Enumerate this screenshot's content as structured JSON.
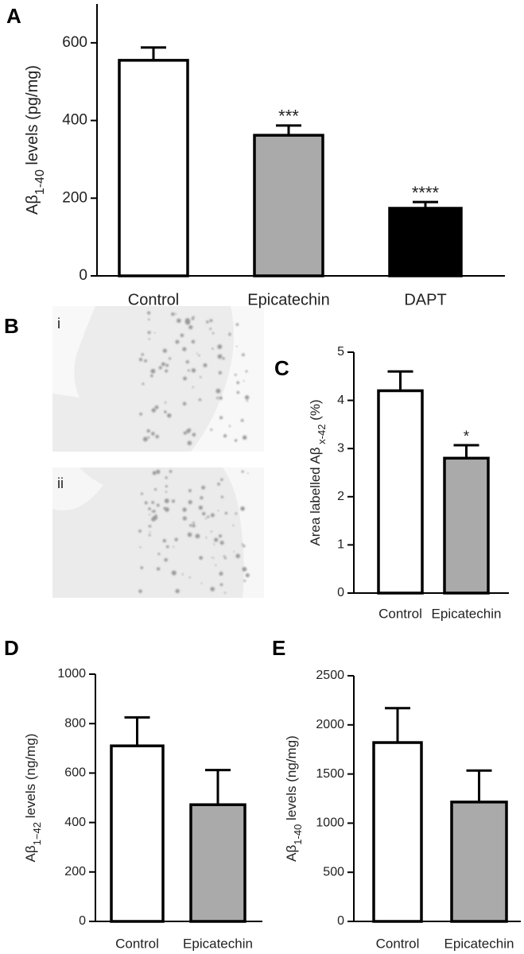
{
  "chart_data": [
    {
      "type": "bar",
      "panel": "A",
      "ylabel": {
        "main": "Aβ",
        "sub": "1-40",
        "rest": " levels (pg/mg)"
      },
      "categories": [
        "Control",
        "Epicatechin",
        "DAPT"
      ],
      "values": [
        555,
        362,
        174
      ],
      "errors": [
        33,
        25,
        16
      ],
      "colors": [
        "#ffffff",
        "#aaaaaa",
        "#000000"
      ],
      "annotations": [
        null,
        "***",
        "****"
      ],
      "ylim": [
        0,
        700
      ],
      "yticks": [
        0,
        200,
        400,
        600
      ]
    },
    {
      "type": "bar",
      "panel": "C",
      "ylabel": {
        "main": "Area labelled Aβ",
        "sub": " x-42",
        "rest": " (%)"
      },
      "categories": [
        "Control",
        "Epicatechin"
      ],
      "values": [
        4.2,
        2.8
      ],
      "errors": [
        0.4,
        0.27
      ],
      "colors": [
        "#ffffff",
        "#aaaaaa"
      ],
      "annotations": [
        null,
        "*"
      ],
      "ylim": [
        0,
        5
      ],
      "yticks": [
        0,
        1,
        2,
        3,
        4,
        5
      ]
    },
    {
      "type": "bar",
      "panel": "D",
      "ylabel": {
        "main": "Aβ",
        "sub": "1−42",
        "rest": " levels (ng/mg)"
      },
      "categories": [
        "Control",
        "Epicatechin"
      ],
      "values": [
        710,
        472
      ],
      "errors": [
        115,
        140
      ],
      "colors": [
        "#ffffff",
        "#aaaaaa"
      ],
      "annotations": [
        null,
        null
      ],
      "ylim": [
        0,
        1000
      ],
      "yticks": [
        0,
        200,
        400,
        600,
        800,
        1000
      ]
    },
    {
      "type": "bar",
      "panel": "E",
      "ylabel": {
        "main": "Aβ",
        "sub": "1-40",
        "rest": " levels (ng/mg)"
      },
      "categories": [
        "Control",
        "Epicatechin"
      ],
      "values": [
        1820,
        1215
      ],
      "errors": [
        350,
        320
      ],
      "colors": [
        "#ffffff",
        "#aaaaaa"
      ],
      "annotations": [
        null,
        null
      ],
      "ylim": [
        0,
        2500
      ],
      "yticks": [
        0,
        500,
        1000,
        1500,
        2000,
        2500
      ]
    }
  ],
  "panel_b": {
    "label": "B",
    "images": [
      "i",
      "ii"
    ]
  }
}
